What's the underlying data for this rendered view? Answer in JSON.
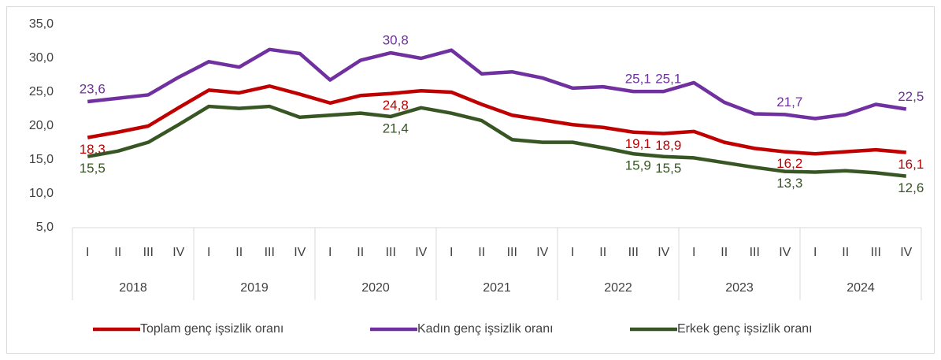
{
  "chart_data": {
    "type": "line",
    "categories": [
      "I",
      "II",
      "III",
      "IV",
      "I",
      "II",
      "III",
      "IV",
      "I",
      "II",
      "III",
      "IV",
      "I",
      "II",
      "III",
      "IV",
      "I",
      "II",
      "III",
      "IV",
      "I",
      "II",
      "III",
      "IV",
      "I",
      "II",
      "III",
      "IV"
    ],
    "years": [
      "2018",
      "2019",
      "2020",
      "2021",
      "2022",
      "2023",
      "2024"
    ],
    "ylim": [
      5,
      35
    ],
    "yticks": [
      {
        "value": 5,
        "label": "5,0"
      },
      {
        "value": 10,
        "label": "10,0"
      },
      {
        "value": 15,
        "label": "15,0"
      },
      {
        "value": 20,
        "label": "20,0"
      },
      {
        "value": 25,
        "label": "25,0"
      },
      {
        "value": 30,
        "label": "30,0"
      },
      {
        "value": 35,
        "label": "35,0"
      }
    ],
    "grid": false,
    "legend": "bottom",
    "series": [
      {
        "name": "Toplam genç işsizlik oranı",
        "color": "#c00000",
        "values": [
          18.3,
          19.1,
          20.0,
          22.7,
          25.3,
          24.9,
          25.9,
          24.7,
          23.4,
          24.5,
          24.8,
          25.2,
          25.0,
          23.2,
          21.6,
          20.9,
          20.2,
          19.8,
          19.1,
          18.9,
          19.2,
          17.6,
          16.7,
          16.2,
          15.9,
          16.2,
          16.5,
          16.1
        ],
        "value_labels": [
          "18,3",
          null,
          null,
          null,
          null,
          null,
          null,
          null,
          null,
          null,
          "24,8",
          null,
          null,
          null,
          null,
          null,
          null,
          null,
          "19,1",
          "18,9",
          null,
          null,
          null,
          "16,2",
          null,
          null,
          null,
          "16,1"
        ]
      },
      {
        "name": "Kadın genç işsizlik oranı",
        "color": "#7030a0",
        "values": [
          23.6,
          24.1,
          24.6,
          27.2,
          29.5,
          28.7,
          31.3,
          30.7,
          26.8,
          29.7,
          30.8,
          30.0,
          31.2,
          27.7,
          28.0,
          27.1,
          25.6,
          25.8,
          25.1,
          25.1,
          26.4,
          23.5,
          21.8,
          21.7,
          21.1,
          21.7,
          23.2,
          22.5
        ],
        "value_labels": [
          "23,6",
          null,
          null,
          null,
          null,
          null,
          null,
          null,
          null,
          null,
          "30,8",
          null,
          null,
          null,
          null,
          null,
          null,
          null,
          "25,1",
          "25,1",
          null,
          null,
          null,
          "21,7",
          null,
          null,
          null,
          "22,5"
        ]
      },
      {
        "name": "Erkek genç işsizlik oranı",
        "color": "#375623",
        "values": [
          15.5,
          16.3,
          17.6,
          20.2,
          22.9,
          22.6,
          22.9,
          21.3,
          21.6,
          21.9,
          21.4,
          22.7,
          21.9,
          20.8,
          18.0,
          17.6,
          17.6,
          16.8,
          15.9,
          15.5,
          15.3,
          14.6,
          13.9,
          13.3,
          13.2,
          13.4,
          13.1,
          12.6
        ],
        "value_labels": [
          "15,5",
          null,
          null,
          null,
          null,
          null,
          null,
          null,
          null,
          null,
          "21,4",
          null,
          null,
          null,
          null,
          null,
          null,
          null,
          "15,9",
          "15,5",
          null,
          null,
          null,
          "13,3",
          null,
          null,
          null,
          "12,6"
        ]
      }
    ]
  }
}
